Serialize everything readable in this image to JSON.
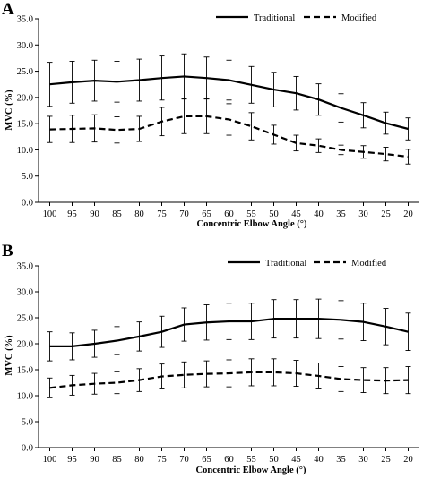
{
  "chart_data": [
    {
      "panel": "A",
      "type": "line",
      "categories": [
        "100",
        "95",
        "90",
        "85",
        "80",
        "75",
        "70",
        "65",
        "60",
        "55",
        "50",
        "45",
        "40",
        "35",
        "30",
        "25",
        "20"
      ],
      "xlabel": "Concentric Elbow Angle (°)",
      "ylabel": "MVC (%)",
      "ylim": [
        0,
        35
      ],
      "yticks": [
        "0.0",
        "5.0",
        "10.0",
        "15.0",
        "20.0",
        "25.0",
        "30.0",
        "35.0"
      ],
      "legend_position": "top-right",
      "series": [
        {
          "name": "Traditional",
          "style": "solid",
          "values": [
            22.5,
            22.9,
            23.2,
            23.0,
            23.3,
            23.7,
            24.0,
            23.7,
            23.3,
            22.4,
            21.5,
            20.8,
            19.6,
            18.0,
            16.6,
            15.1,
            14.0
          ],
          "errors": [
            4.2,
            4.0,
            3.9,
            3.9,
            4.0,
            4.2,
            4.3,
            4.0,
            3.8,
            3.5,
            3.3,
            3.2,
            3.0,
            2.7,
            2.4,
            2.1,
            2.1
          ]
        },
        {
          "name": "Modified",
          "style": "dashed",
          "values": [
            13.9,
            14.0,
            14.1,
            13.8,
            14.0,
            15.4,
            16.4,
            16.4,
            15.8,
            14.5,
            12.9,
            11.3,
            10.8,
            10.0,
            9.6,
            9.2,
            8.7
          ],
          "errors": [
            2.5,
            2.6,
            2.6,
            2.5,
            2.4,
            2.7,
            3.3,
            3.3,
            3.0,
            2.6,
            1.8,
            1.5,
            1.3,
            0.9,
            1.2,
            1.3,
            1.4
          ]
        }
      ]
    },
    {
      "panel": "B",
      "type": "line",
      "categories": [
        "100",
        "95",
        "90",
        "85",
        "80",
        "75",
        "70",
        "65",
        "60",
        "55",
        "50",
        "45",
        "40",
        "35",
        "30",
        "25",
        "20"
      ],
      "xlabel": "Concentric Elbow Angle (°)",
      "ylabel": "MVC (%)",
      "ylim": [
        0,
        35
      ],
      "yticks": [
        "0.0",
        "5.0",
        "10.0",
        "15.0",
        "20.0",
        "25.0",
        "30.0",
        "35.0"
      ],
      "legend_position": "top-right",
      "series": [
        {
          "name": "Traditional",
          "style": "solid",
          "values": [
            19.5,
            19.5,
            20.0,
            20.6,
            21.4,
            22.3,
            23.7,
            24.1,
            24.3,
            24.3,
            24.8,
            24.8,
            24.8,
            24.6,
            24.2,
            23.3,
            22.3
          ],
          "errors": [
            2.8,
            2.6,
            2.6,
            2.7,
            2.8,
            3.0,
            3.2,
            3.4,
            3.5,
            3.5,
            3.7,
            3.7,
            3.8,
            3.7,
            3.6,
            3.5,
            3.6
          ]
        },
        {
          "name": "Modified",
          "style": "dashed",
          "values": [
            11.5,
            12.0,
            12.3,
            12.5,
            13.0,
            13.7,
            14.0,
            14.2,
            14.3,
            14.5,
            14.5,
            14.3,
            13.8,
            13.2,
            13.0,
            12.9,
            13.0
          ],
          "errors": [
            1.9,
            1.9,
            2.0,
            2.1,
            2.2,
            2.4,
            2.5,
            2.5,
            2.6,
            2.6,
            2.6,
            2.5,
            2.5,
            2.4,
            2.4,
            2.5,
            2.6
          ]
        }
      ]
    }
  ]
}
